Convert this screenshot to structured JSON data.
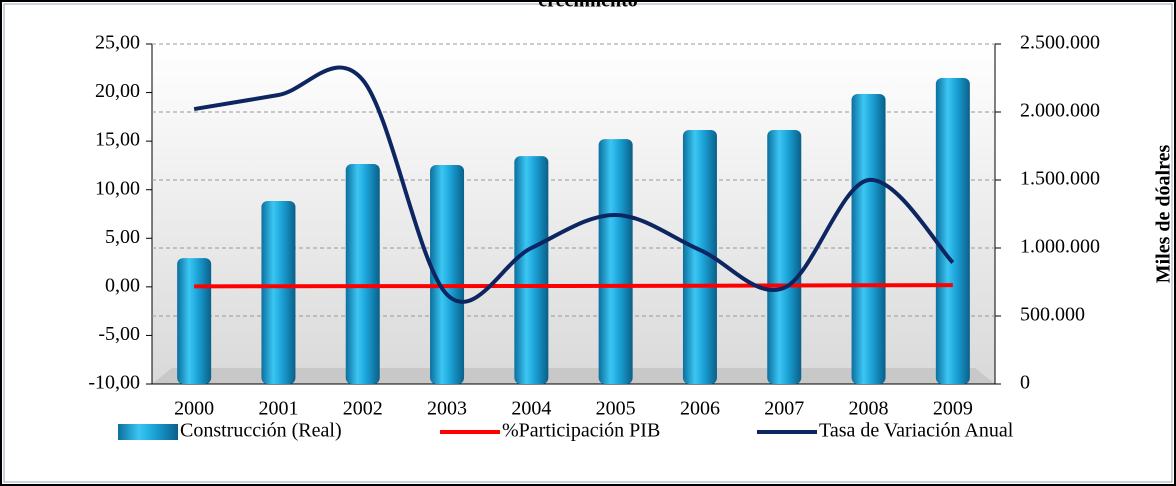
{
  "chart_data": {
    "type": "combo",
    "title": "crecimiento",
    "categories": [
      "2000",
      "2001",
      "2002",
      "2003",
      "2004",
      "2005",
      "2006",
      "2007",
      "2008",
      "2009"
    ],
    "series": [
      {
        "name": "Construcción (Real)",
        "type": "bar",
        "axis": "y2",
        "color": "#1ba3d8",
        "values": [
          926000,
          1346000,
          1618000,
          1610000,
          1676000,
          1801000,
          1868000,
          1868000,
          2132000,
          2250000
        ]
      },
      {
        "name": "%Participación PIB",
        "type": "line",
        "color": "#ff0000",
        "values": [
          0.05,
          0.06,
          0.07,
          0.08,
          0.09,
          0.1,
          0.12,
          0.14,
          0.16,
          0.18
        ]
      },
      {
        "name": "Tasa de Variación Anual",
        "type": "line",
        "color": "#0d2561",
        "values": [
          18.3,
          19.75,
          21.3,
          -0.8,
          4.0,
          7.4,
          3.8,
          -0.1,
          11.0,
          2.5
        ]
      }
    ],
    "ylim": [
      -10,
      25
    ],
    "yticks": [
      {
        "value": -10,
        "label": "-10,00"
      },
      {
        "value": -5,
        "label": "-5,00"
      },
      {
        "value": 0,
        "label": "0,00"
      },
      {
        "value": 5,
        "label": "5,00"
      },
      {
        "value": 10,
        "label": "10,00"
      },
      {
        "value": 15,
        "label": "15,00"
      },
      {
        "value": 20,
        "label": "20,00"
      },
      {
        "value": 25,
        "label": "25,00"
      }
    ],
    "y2lim": [
      0,
      2500000
    ],
    "y2ticks": [
      0,
      {
        "value": 500000,
        "label": "500.000"
      },
      {
        "value": 1000000,
        "label": "1.000.000"
      },
      {
        "value": 1500000,
        "label": "1.500.000"
      },
      {
        "value": 2000000,
        "label": "2.000.000"
      },
      {
        "value": 2500000,
        "label": "2.500.000"
      }
    ],
    "y2label": "Miles de dóalres",
    "grid": true
  }
}
